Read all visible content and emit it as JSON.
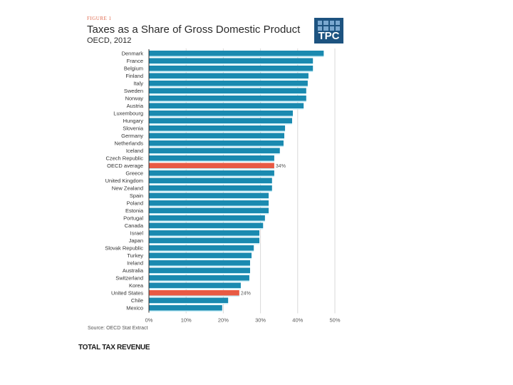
{
  "header": {
    "figure_label": "FIGURE 1",
    "title": "Taxes as a Share of Gross Domestic Product",
    "subtitle": "OECD, 2012",
    "logo_text": "TPC"
  },
  "source": "Source: OECD Stat Extract",
  "footer": "TOTAL TAX REVENUE",
  "colors": {
    "bar": "#1a8ab0",
    "highlight": "#e85a44",
    "bar_gap": "#c9eef8",
    "gridline": "#d9d9d9",
    "axis": "#333333"
  },
  "chart_data": {
    "type": "bar",
    "orientation": "horizontal",
    "title": "Taxes as a Share of Gross Domestic Product",
    "subtitle": "OECD, 2012",
    "xlabel": "",
    "ylabel": "",
    "xlim": [
      0,
      50
    ],
    "xticks": [
      0,
      10,
      20,
      30,
      40,
      50
    ],
    "xtick_labels": [
      "0%",
      "10%",
      "20%",
      "30%",
      "40%",
      "50%"
    ],
    "grid": true,
    "categories": [
      "Denmark",
      "France",
      "Belgium",
      "Finland",
      "Italy",
      "Sweden",
      "Norway",
      "Austria",
      "Luxembourg",
      "Hungary",
      "Slovenia",
      "Germany",
      "Netherlands",
      "Iceland",
      "Czech Republic",
      "OECD average",
      "Greece",
      "United Kingdom",
      "New Zealand",
      "Spain",
      "Poland",
      "Estonia",
      "Portugal",
      "Canada",
      "Israel",
      "Japan",
      "Slovak Republic",
      "Turkey",
      "Ireland",
      "Australia",
      "Switzerland",
      "Korea",
      "United States",
      "Chile",
      "Mexico"
    ],
    "values": [
      47.0,
      44.1,
      44.1,
      42.9,
      42.7,
      42.3,
      42.3,
      41.6,
      38.7,
      38.5,
      36.6,
      36.4,
      36.2,
      35.2,
      33.7,
      33.7,
      33.7,
      33.1,
      33.1,
      32.2,
      32.2,
      32.2,
      31.2,
      30.7,
      29.7,
      29.7,
      28.2,
      27.6,
      27.2,
      27.2,
      27.0,
      24.7,
      24.3,
      21.3,
      19.7
    ],
    "highlighted": [
      "OECD average",
      "United States"
    ],
    "annotations": [
      {
        "category": "OECD average",
        "text": "34%"
      },
      {
        "category": "United States",
        "text": "24%"
      }
    ],
    "source": "Source: OECD Stat Extract"
  }
}
